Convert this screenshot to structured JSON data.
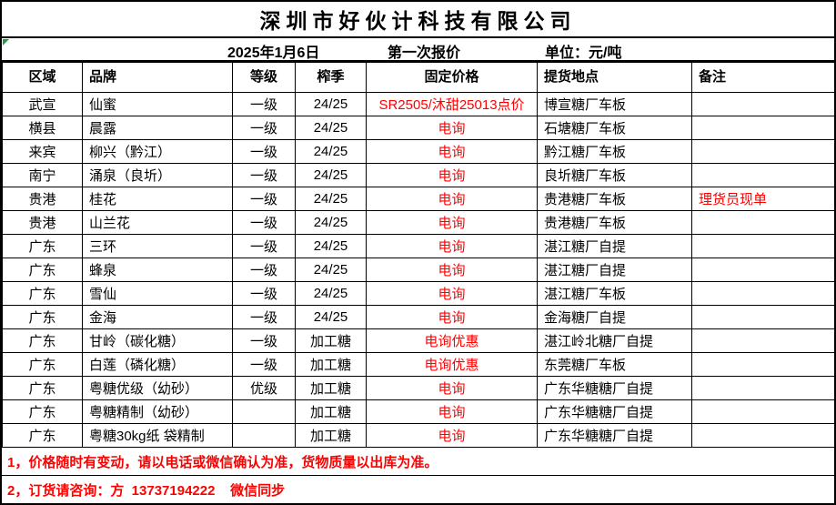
{
  "title": "深圳市好伙计科技有限公司",
  "subheader": {
    "date": "2025年1月6日",
    "round": "第一次报价",
    "unit": "单位：元/吨"
  },
  "columns": [
    "区域",
    "品牌",
    "等级",
    "榨季",
    "固定价格",
    "提货地点",
    "备注"
  ],
  "rows": [
    {
      "region": "武宣",
      "brand": "仙蜜",
      "grade": "一级",
      "season": "24/25",
      "price": "SR2505/沐甜25013点价",
      "pickup": "博宣糖厂车板",
      "note": ""
    },
    {
      "region": "横县",
      "brand": "晨露",
      "grade": "一级",
      "season": "24/25",
      "price": "电询",
      "pickup": "石塘糖厂车板",
      "note": ""
    },
    {
      "region": "来宾",
      "brand": "柳兴（黔江）",
      "grade": "一级",
      "season": "24/25",
      "price": "电询",
      "pickup": "黔江糖厂车板",
      "note": ""
    },
    {
      "region": "南宁",
      "brand": "涌泉（良圻）",
      "grade": "一级",
      "season": "24/25",
      "price": "电询",
      "pickup": "良圻糖厂车板",
      "note": ""
    },
    {
      "region": "贵港",
      "brand": "桂花",
      "grade": "一级",
      "season": "24/25",
      "price": "电询",
      "pickup": "贵港糖厂车板",
      "note": "理货员现单"
    },
    {
      "region": "贵港",
      "brand": "山兰花",
      "grade": "一级",
      "season": "24/25",
      "price": "电询",
      "pickup": "贵港糖厂车板",
      "note": ""
    },
    {
      "region": "广东",
      "brand": "三环",
      "grade": "一级",
      "season": "24/25",
      "price": "电询",
      "pickup": "湛江糖厂自提",
      "note": ""
    },
    {
      "region": "广东",
      "brand": "蜂泉",
      "grade": "一级",
      "season": "24/25",
      "price": "电询",
      "pickup": "湛江糖厂自提",
      "note": ""
    },
    {
      "region": "广东",
      "brand": "雪仙",
      "grade": "一级",
      "season": "24/25",
      "price": "电询",
      "pickup": "湛江糖厂车板",
      "note": ""
    },
    {
      "region": "广东",
      "brand": "金海",
      "grade": "一级",
      "season": "24/25",
      "price": "电询",
      "pickup": "金海糖厂自提",
      "note": ""
    },
    {
      "region": "广东",
      "brand": "甘岭（碳化糖）",
      "grade": "一级",
      "season": "加工糖",
      "price": "电询优惠",
      "pickup": "湛江岭北糖厂自提",
      "note": ""
    },
    {
      "region": "广东",
      "brand": "白莲（磷化糖）",
      "grade": "一级",
      "season": "加工糖",
      "price": "电询优惠",
      "pickup": "东莞糖厂车板",
      "note": ""
    },
    {
      "region": "广东",
      "brand": "粤糖优级（幼砂）",
      "grade": "优级",
      "season": "加工糖",
      "price": "电询",
      "pickup": "广东华糖糖厂自提",
      "note": ""
    },
    {
      "region": "广东",
      "brand": "粤糖精制（幼砂）",
      "grade": "",
      "season": "加工糖",
      "price": "电询",
      "pickup": "广东华糖糖厂自提",
      "note": ""
    },
    {
      "region": "广东",
      "brand": "粤糖30kg纸 袋精制",
      "grade": "",
      "season": "加工糖",
      "price": "电询",
      "pickup": "广东华糖糖厂自提",
      "note": ""
    }
  ],
  "notes": [
    "1，价格随时有变动，请以电话或微信确认为准，货物质量以出库为准。",
    "2，订货请咨询：方  13737194222    微信同步"
  ],
  "colors": {
    "accent_red": "#ff0000",
    "text_black": "#000000",
    "flag_green": "#1e9e40",
    "border": "#000000"
  }
}
